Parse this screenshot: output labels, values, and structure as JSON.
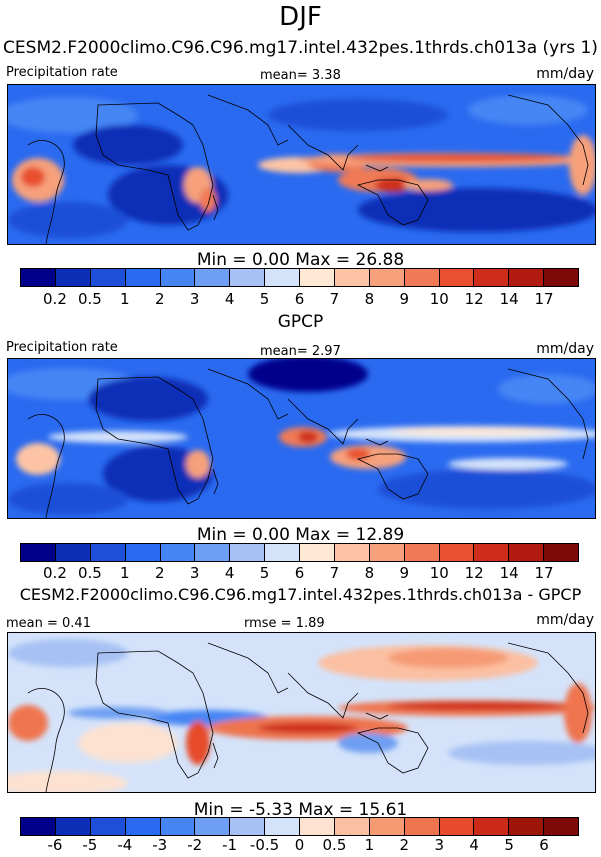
{
  "page_title": "DJF",
  "colors": {
    "precip_scale": [
      "#00008b",
      "#0c2eb6",
      "#1e4fd8",
      "#2a6af0",
      "#4585f4",
      "#6e9ff2",
      "#a7c1f4",
      "#d4e3fa",
      "#ffe8d4",
      "#fcc4a4",
      "#f6a07c",
      "#ef7a55",
      "#e8502f",
      "#cf2d1b",
      "#b21b12",
      "#7d0a08"
    ],
    "diff_scale": [
      "#00008b",
      "#0c2eb6",
      "#1e4fd8",
      "#2a6af0",
      "#4585f4",
      "#6e9ff2",
      "#a7c1f4",
      "#d4e3fa",
      "#fde2d2",
      "#fbc0a2",
      "#f69a74",
      "#ef7550",
      "#e64b2c",
      "#cc2a18",
      "#9d1408",
      "#7d0a08"
    ]
  },
  "chart_data": [
    {
      "type": "heatmap",
      "title": "CESM2.F2000climo.C96.C96.mg17.intel.432pes.1thrds.ch013a (yrs 1)",
      "left_label": "Precipitation rate",
      "center_label": "mean=   3.38",
      "units": "mm/day",
      "stats": "Min =   0.00 Max =  26.88",
      "colorbar_levels": [
        "0.2",
        "0.5",
        "1",
        "2",
        "3",
        "4",
        "5",
        "6",
        "7",
        "8",
        "9",
        "10",
        "12",
        "14",
        "17"
      ]
    },
    {
      "type": "heatmap",
      "title": "GPCP",
      "left_label": "Precipitation rate",
      "center_label": "mean=   2.97",
      "units": "mm/day",
      "stats": "Min =   0.00 Max =  12.89",
      "colorbar_levels": [
        "0.2",
        "0.5",
        "1",
        "2",
        "3",
        "4",
        "5",
        "6",
        "7",
        "8",
        "9",
        "10",
        "12",
        "14",
        "17"
      ]
    },
    {
      "type": "heatmap",
      "title": "CESM2.F2000climo.C96.C96.mg17.intel.432pes.1thrds.ch013a - GPCP",
      "left_label": "mean =   0.41",
      "center_label": "rmse =   1.89",
      "units": "mm/day",
      "stats": "Min =  -5.33 Max =  15.61",
      "colorbar_levels": [
        "-6",
        "-5",
        "-4",
        "-3",
        "-2",
        "-1",
        "-0.5",
        "0",
        "0.5",
        "1",
        "2",
        "3",
        "4",
        "5",
        "6"
      ]
    }
  ]
}
